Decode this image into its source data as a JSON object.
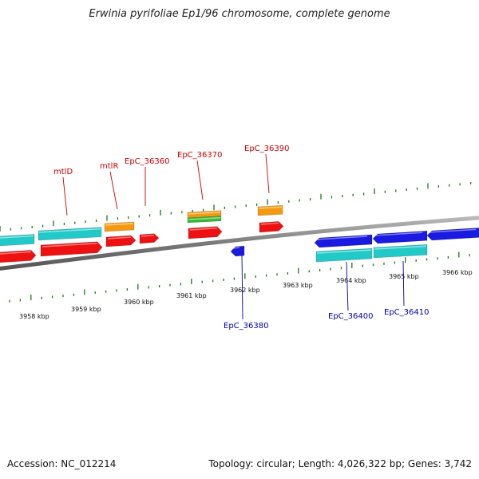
{
  "title": "Erwinia pyrifoliae Ep1/96 chromosome, complete genome",
  "footer": {
    "accession": "Accession: NC_012214",
    "summary": "Topology: circular; Length: 4,026,322 bp; Genes: 3,742"
  },
  "colors": {
    "forward_label": "#cc0000",
    "reverse_label": "#0000aa",
    "tick": "#1a7a1a",
    "backbone": "#888888",
    "red": "#ee1111",
    "orange": "#f49a10",
    "cyan": "#22c9c9",
    "blue": "#1a1ae0",
    "green": "#33bb33"
  },
  "scale_labels": [
    "3958 kbp",
    "3959 kbp",
    "3960 kbp",
    "3961 kbp",
    "3962 kbp",
    "3963 kbp",
    "3964 kbp",
    "3965 kbp",
    "3966 kbp"
  ],
  "forward_labels": [
    "mtlD",
    "mtlR",
    "EpC_36360",
    "EpC_36370",
    "EpC_36390"
  ],
  "reverse_labels": [
    "EpC_36380",
    "EpC_36400",
    "EpC_36410"
  ]
}
